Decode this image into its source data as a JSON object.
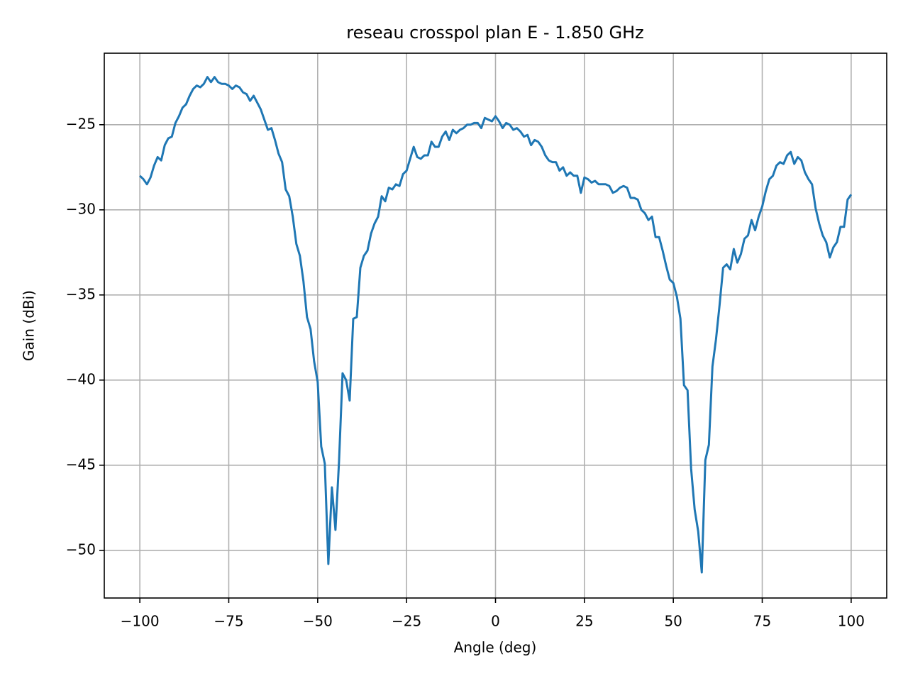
{
  "chart_data": {
    "type": "line",
    "title": "reseau crosspol plan E - 1.850 GHz",
    "x_label": "Angle (deg)",
    "y_label": "Gain (dBi)",
    "color": "#1f77b4",
    "grid": true,
    "xlim": [
      -110,
      110
    ],
    "ylim": [
      -52.8,
      -20.8
    ],
    "xticks": [
      {
        "value": -100,
        "label": "−100"
      },
      {
        "value": -75,
        "label": "−75"
      },
      {
        "value": -50,
        "label": "−50"
      },
      {
        "value": -25,
        "label": "−25"
      },
      0,
      25,
      50,
      75,
      100
    ],
    "yticks": [
      {
        "value": -50,
        "label": "−50"
      },
      {
        "value": -45,
        "label": "−45"
      },
      {
        "value": -40,
        "label": "−40"
      },
      {
        "value": -35,
        "label": "−35"
      },
      {
        "value": -30,
        "label": "−30"
      },
      {
        "value": -25,
        "label": "−25"
      }
    ],
    "x": [
      -100,
      -99,
      -98,
      -97,
      -96,
      -95,
      -94,
      -93,
      -92,
      -91,
      -90,
      -89,
      -88,
      -87,
      -86,
      -85,
      -84,
      -83,
      -82,
      -81,
      -80,
      -79,
      -78,
      -77,
      -76,
      -75,
      -74,
      -73,
      -72,
      -71,
      -70,
      -69,
      -68,
      -67,
      -66,
      -65,
      -64,
      -63,
      -62,
      -61,
      -60,
      -59,
      -58,
      -57,
      -56,
      -55,
      -54,
      -53,
      -52,
      -51,
      -50,
      -49,
      -48,
      -47,
      -46,
      -45,
      -44,
      -43,
      -42,
      -41,
      -40,
      -39,
      -38,
      -37,
      -36,
      -35,
      -34,
      -33,
      -32,
      -31,
      -30,
      -29,
      -28,
      -27,
      -26,
      -25,
      -24,
      -23,
      -22,
      -21,
      -20,
      -19,
      -18,
      -17,
      -16,
      -15,
      -14,
      -13,
      -12,
      -11,
      -10,
      -9,
      -8,
      -7,
      -6,
      -5,
      -4,
      -3,
      -2,
      -1,
      0,
      1,
      2,
      3,
      4,
      5,
      6,
      7,
      8,
      9,
      10,
      11,
      12,
      13,
      14,
      15,
      16,
      17,
      18,
      19,
      20,
      21,
      22,
      23,
      24,
      25,
      26,
      27,
      28,
      29,
      30,
      31,
      32,
      33,
      34,
      35,
      36,
      37,
      38,
      39,
      40,
      41,
      42,
      43,
      44,
      45,
      46,
      47,
      48,
      49,
      50,
      51,
      52,
      53,
      54,
      55,
      56,
      57,
      58,
      59,
      60,
      61,
      62,
      63,
      64,
      65,
      66,
      67,
      68,
      69,
      70,
      71,
      72,
      73,
      74,
      75,
      76,
      77,
      78,
      79,
      80,
      81,
      82,
      83,
      84,
      85,
      86,
      87,
      88,
      89,
      90,
      91,
      92,
      93,
      94,
      95,
      96,
      97,
      98,
      99,
      100
    ],
    "values": [
      -28.0,
      -28.2,
      -28.5,
      -28.1,
      -27.4,
      -26.9,
      -27.1,
      -26.2,
      -25.8,
      -25.7,
      -24.9,
      -24.5,
      -24.0,
      -23.8,
      -23.3,
      -22.9,
      -22.7,
      -22.8,
      -22.6,
      -22.2,
      -22.5,
      -22.2,
      -22.5,
      -22.6,
      -22.6,
      -22.7,
      -22.9,
      -22.7,
      -22.8,
      -23.1,
      -23.2,
      -23.6,
      -23.3,
      -23.7,
      -24.1,
      -24.7,
      -25.3,
      -25.2,
      -25.9,
      -26.7,
      -27.2,
      -28.8,
      -29.2,
      -30.4,
      -32.0,
      -32.7,
      -34.2,
      -36.3,
      -37.0,
      -38.9,
      -40.1,
      -43.9,
      -44.9,
      -50.8,
      -46.3,
      -48.8,
      -44.8,
      -39.6,
      -40.0,
      -41.2,
      -36.4,
      -36.3,
      -33.4,
      -32.7,
      -32.4,
      -31.4,
      -30.8,
      -30.4,
      -29.2,
      -29.5,
      -28.7,
      -28.8,
      -28.5,
      -28.6,
      -27.9,
      -27.7,
      -27.0,
      -26.3,
      -26.9,
      -27.0,
      -26.8,
      -26.8,
      -26.0,
      -26.3,
      -26.3,
      -25.7,
      -25.4,
      -25.9,
      -25.3,
      -25.5,
      -25.3,
      -25.2,
      -25.0,
      -25.0,
      -24.9,
      -24.9,
      -25.2,
      -24.6,
      -24.7,
      -24.8,
      -24.5,
      -24.8,
      -25.2,
      -24.9,
      -25.0,
      -25.3,
      -25.2,
      -25.4,
      -25.7,
      -25.6,
      -26.2,
      -25.9,
      -26.0,
      -26.3,
      -26.8,
      -27.1,
      -27.2,
      -27.2,
      -27.7,
      -27.5,
      -28.0,
      -27.8,
      -28.0,
      -28.0,
      -29.0,
      -28.1,
      -28.2,
      -28.4,
      -28.3,
      -28.5,
      -28.5,
      -28.5,
      -28.6,
      -29.0,
      -28.9,
      -28.7,
      -28.6,
      -28.7,
      -29.3,
      -29.3,
      -29.4,
      -30.0,
      -30.2,
      -30.6,
      -30.4,
      -31.6,
      -31.6,
      -32.4,
      -33.3,
      -34.1,
      -34.3,
      -35.1,
      -36.4,
      -40.3,
      -40.6,
      -45.2,
      -47.6,
      -48.9,
      -51.3,
      -44.7,
      -43.8,
      -39.2,
      -37.6,
      -35.6,
      -33.4,
      -33.2,
      -33.5,
      -32.3,
      -33.1,
      -32.6,
      -31.7,
      -31.5,
      -30.6,
      -31.2,
      -30.4,
      -29.8,
      -28.9,
      -28.2,
      -28.0,
      -27.4,
      -27.2,
      -27.3,
      -26.8,
      -26.6,
      -27.3,
      -26.9,
      -27.1,
      -27.8,
      -28.2,
      -28.5,
      -29.9,
      -30.8,
      -31.5,
      -31.9,
      -32.8,
      -32.2,
      -31.9,
      -31.0,
      -31.0,
      -29.4,
      -29.1
    ]
  }
}
